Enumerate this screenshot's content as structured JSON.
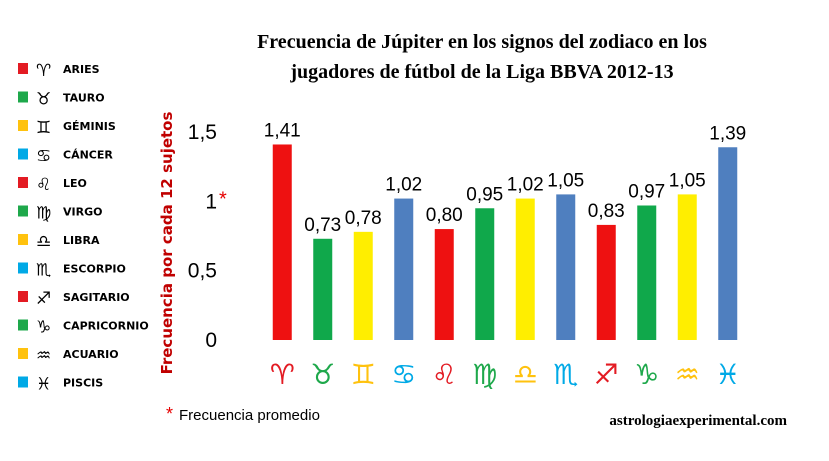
{
  "chart_data": {
    "type": "bar",
    "title_line1": "Frecuencia de Júpiter en los signos del zodiaco en los",
    "title_line2": "jugadores de fútbol de la Liga BBVA 2012-13",
    "ylabel": "Frecuencia por cada 12 sujetos",
    "ylim": [
      0,
      1.5
    ],
    "yticks": [
      "0",
      "0,5",
      "1",
      "1,5"
    ],
    "ytick_star": "*",
    "categories": [
      "ARIES",
      "TAURO",
      "GÉMINIS",
      "CÁNCER",
      "LEO",
      "VIRGO",
      "LIBRA",
      "ESCORPIO",
      "SAGITARIO",
      "CAPRICORNIO",
      "ACUARIO",
      "PISCIS"
    ],
    "glyphs": [
      "♈",
      "♉",
      "♊",
      "♋",
      "♌",
      "♍",
      "♎",
      "♏",
      "♐",
      "♑",
      "♒",
      "♓"
    ],
    "values": [
      1.41,
      0.73,
      0.78,
      1.02,
      0.8,
      0.95,
      1.02,
      1.05,
      0.83,
      0.97,
      1.05,
      1.39
    ],
    "value_labels": [
      "1,41",
      "0,73",
      "0,78",
      "1,02",
      "0,80",
      "0,95",
      "1,02",
      "1,05",
      "0,83",
      "0,97",
      "1,05",
      "1,39"
    ],
    "colors": [
      "#ee1111",
      "#10a84b",
      "#ffee00",
      "#4f7fbf",
      "#ee1111",
      "#10a84b",
      "#ffee00",
      "#4f7fbf",
      "#ee1111",
      "#10a84b",
      "#ffee00",
      "#4f7fbf"
    ],
    "legend_colors": [
      "#e31b23",
      "#1ea84b",
      "#ffc20e",
      "#00a9e6",
      "#e31b23",
      "#1ea84b",
      "#ffc20e",
      "#00a9e6",
      "#e31b23",
      "#1ea84b",
      "#ffc20e",
      "#00a9e6"
    ],
    "legend_placement": "left",
    "grid": false
  },
  "footnote": {
    "star": "*",
    "text": "Frecuencia promedio"
  },
  "credit": "astrologiaexperimental.com"
}
